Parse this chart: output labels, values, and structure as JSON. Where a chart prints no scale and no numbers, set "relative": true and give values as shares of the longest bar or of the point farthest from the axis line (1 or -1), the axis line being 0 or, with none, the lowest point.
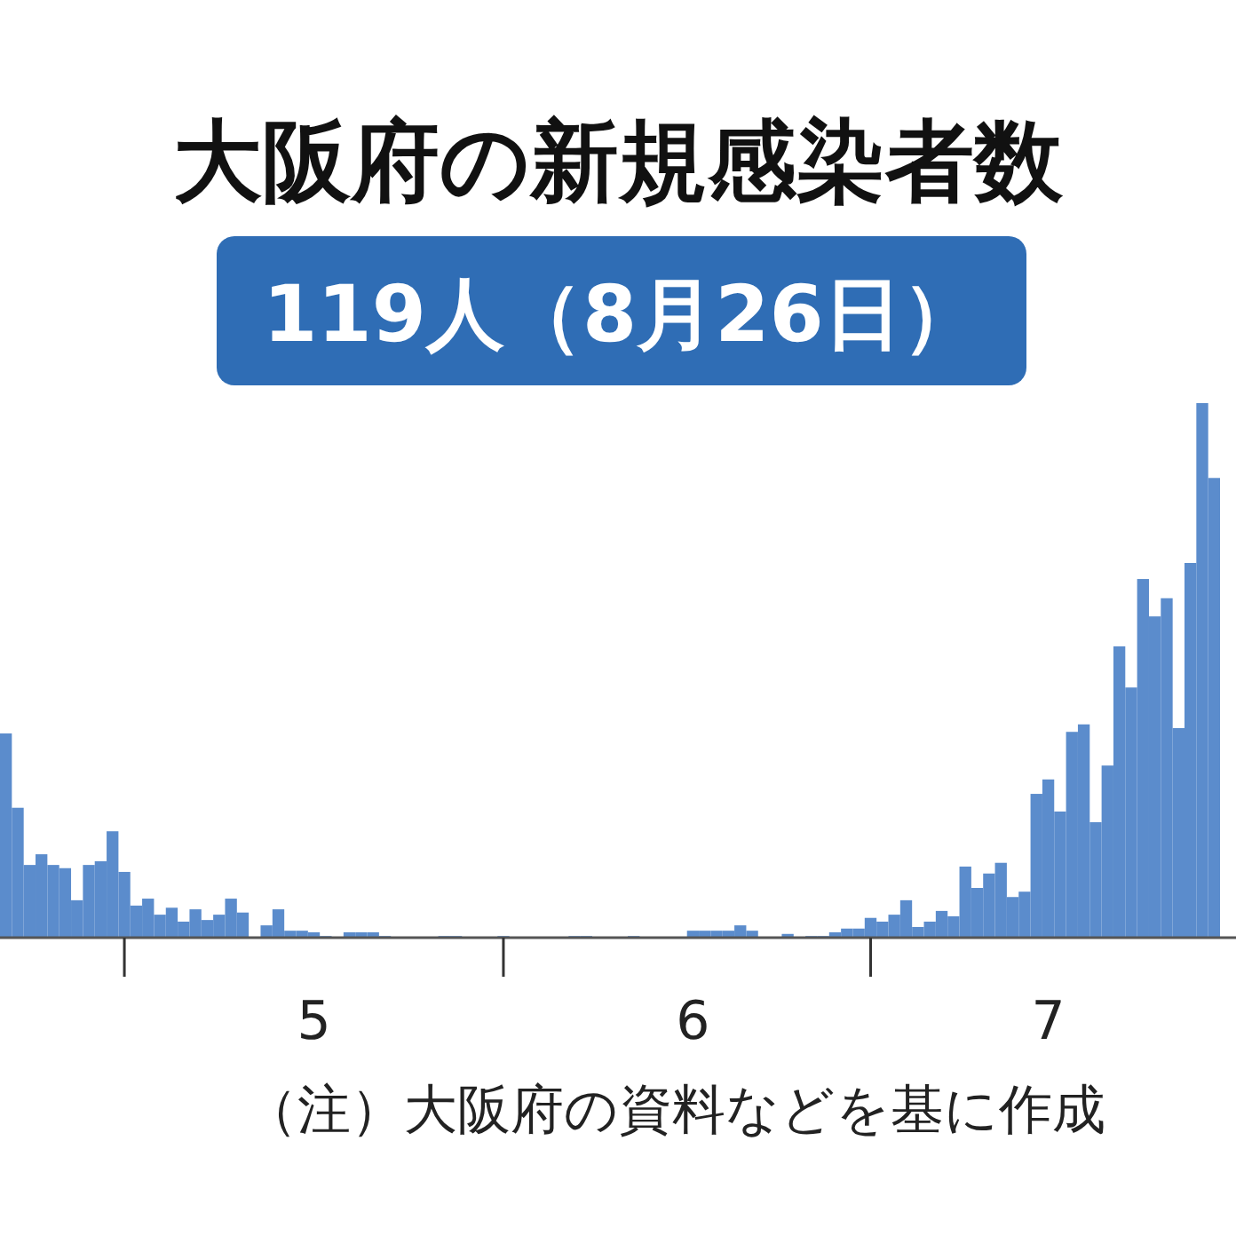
{
  "chart_data": {
    "type": "bar",
    "title": "大阪府の新規感染者数",
    "subtitle": "119人（8月26日）",
    "annotations": [
      "（注）大阪府の資料などを基に作成"
    ],
    "relative": true,
    "color": "#5b8ccc",
    "categories": [
      null,
      null,
      null,
      null,
      null,
      null,
      null,
      null,
      null,
      null,
      null,
      null,
      null,
      null,
      null,
      null,
      null,
      null,
      null,
      null,
      null,
      null,
      null,
      null,
      null,
      null,
      "5",
      null,
      null,
      null,
      null,
      null,
      null,
      null,
      null,
      null,
      null,
      null,
      null,
      null,
      null,
      null,
      null,
      null,
      null,
      null,
      null,
      null,
      null,
      null,
      null,
      null,
      null,
      null,
      null,
      null,
      null,
      null,
      "6",
      null,
      null,
      null,
      null,
      null,
      null,
      null,
      null,
      null,
      null,
      null,
      null,
      null,
      null,
      null,
      null,
      null,
      null,
      null,
      null,
      null,
      null,
      null,
      null,
      null,
      null,
      null,
      null,
      null,
      "7",
      null,
      null,
      null,
      null,
      null,
      null,
      null,
      null,
      null,
      null,
      null,
      null,
      null,
      null
    ],
    "values": [
      0.382,
      0.243,
      0.136,
      0.156,
      0.136,
      0.13,
      0.07,
      0.136,
      0.143,
      0.199,
      0.123,
      0.06,
      0.073,
      0.043,
      0.056,
      0.03,
      0.053,
      0.033,
      0.043,
      0.073,
      0.047,
      0,
      0.023,
      0.053,
      0.013,
      0.013,
      0.01,
      0.003,
      0,
      0.01,
      0.01,
      0.01,
      0.003,
      0,
      0,
      0,
      0,
      0.003,
      0.003,
      0,
      0,
      0,
      0.003,
      0,
      0,
      0,
      0,
      0,
      0.003,
      0.003,
      0,
      0,
      0,
      0.003,
      0,
      0,
      0,
      0,
      0.013,
      0.013,
      0.013,
      0.013,
      0.023,
      0.013,
      0,
      0,
      0.007,
      0,
      0.003,
      0.003,
      0.01,
      0.017,
      0.017,
      0.037,
      0.03,
      0.043,
      0.07,
      0.02,
      0.03,
      0.05,
      0.04,
      0.133,
      0.093,
      0.12,
      0.14,
      0.076,
      0.086,
      0.269,
      0.296,
      0.236,
      0.385,
      0.399,
      0.216,
      0.322,
      0.545,
      0.468,
      0.671,
      0.601,
      0.635,
      0.392,
      0.701,
      1,
      0.86
    ]
  }
}
